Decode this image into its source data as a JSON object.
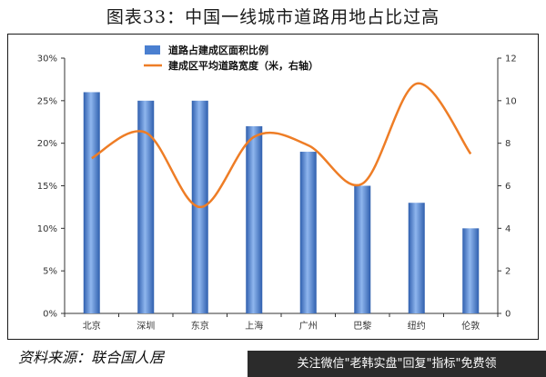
{
  "figure_title": "图表33：中国一线城市道路用地占比过高",
  "source_text": "资料来源：联合国人居",
  "footer_text": "关注微信\"老韩实盘\"回复\"指标\"免费领",
  "colors": {
    "bar": "#4a7fd0",
    "bar_dark": "#2f5fae",
    "line": "#ee7d26",
    "axis": "#333333"
  },
  "chart_data": {
    "type": "bar",
    "categories": [
      "北京",
      "深圳",
      "东京",
      "上海",
      "广州",
      "巴黎",
      "纽约",
      "伦敦"
    ],
    "series": [
      {
        "name": "道路占建成区面积比例",
        "type": "bar",
        "axis": "left",
        "values": [
          26,
          25,
          25,
          22,
          19,
          15,
          13,
          10
        ]
      },
      {
        "name": "建成区平均道路宽度（米，右轴）",
        "type": "line",
        "smooth": true,
        "axis": "right",
        "values": [
          7.3,
          8.5,
          5.0,
          8.3,
          7.9,
          6.1,
          10.8,
          7.5
        ]
      }
    ],
    "y_left": {
      "ylim": [
        0,
        30
      ],
      "ticks": [
        0,
        5,
        10,
        15,
        20,
        25,
        30
      ],
      "tick_labels": [
        "0%",
        "5%",
        "10%",
        "15%",
        "20%",
        "25%",
        "30%"
      ]
    },
    "y_right": {
      "ylim": [
        0,
        12
      ],
      "ticks": [
        0,
        2,
        4,
        6,
        8,
        10,
        12
      ],
      "tick_labels": [
        "0",
        "2",
        "4",
        "6",
        "8",
        "10",
        "12"
      ]
    },
    "grid": false,
    "legend": "top"
  }
}
